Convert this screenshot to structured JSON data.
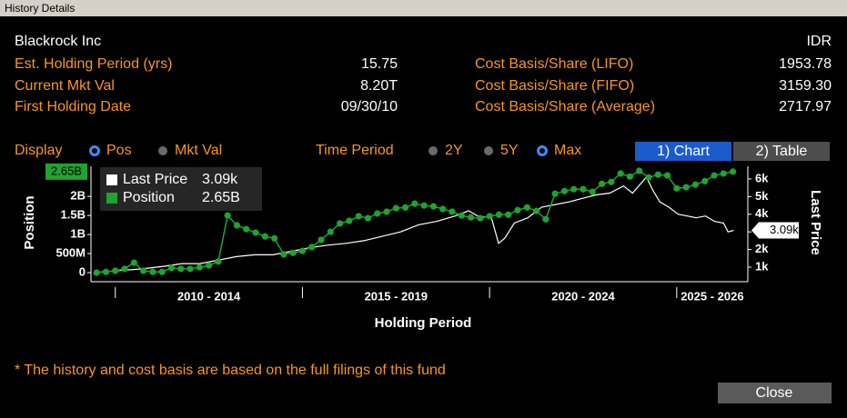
{
  "window": {
    "title": "History Details"
  },
  "header": {
    "name": "Blackrock Inc",
    "currency": "IDR"
  },
  "fields_left": [
    {
      "label": "Est. Holding Period (yrs)",
      "value": "15.75"
    },
    {
      "label": "Current Mkt Val",
      "value": "8.20T"
    },
    {
      "label": "First Holding Date",
      "value": "09/30/10"
    }
  ],
  "fields_right": [
    {
      "label": "Cost Basis/Share (LIFO)",
      "value": "1953.78"
    },
    {
      "label": "Cost Basis/Share (FIFO)",
      "value": "3159.30"
    },
    {
      "label": "Cost Basis/Share (Average)",
      "value": "2717.97"
    }
  ],
  "controls": {
    "display_label": "Display",
    "display_options": [
      {
        "label": "Pos",
        "selected": true
      },
      {
        "label": "Mkt Val",
        "selected": false
      }
    ],
    "time_label": "Time Period",
    "time_options": [
      {
        "label": "2Y",
        "selected": false
      },
      {
        "label": "5Y",
        "selected": false
      },
      {
        "label": "Max",
        "selected": true
      }
    ],
    "tabs": [
      {
        "label": "1) Chart",
        "selected": true
      },
      {
        "label": "2) Table",
        "selected": false
      }
    ]
  },
  "footnote": "* The history and cost basis are based on the full filings of this fund",
  "close": "Close",
  "chart_data": {
    "type": "line",
    "xlabel": "Holding Period",
    "ylabel": "Position",
    "y2label": "Last Price",
    "x_groups": [
      "2010 - 2014",
      "2015 - 2019",
      "2020 - 2024",
      "2025 - 2026"
    ],
    "x_separators": [
      2010,
      2015,
      2020,
      2025
    ],
    "xlim": [
      2009.35,
      2026.9
    ],
    "ylim": [
      -190000000.0,
      2790000000.0
    ],
    "yticks": [
      0,
      {
        "value": 500000000.0,
        "label": "500M"
      },
      {
        "value": 1000000000.0,
        "label": "1B"
      },
      {
        "value": 1500000000.0,
        "label": "1.5B"
      },
      {
        "value": 2000000000.0,
        "label": "2B"
      }
    ],
    "y2lim": [
      280,
      6720
    ],
    "y2ticks": [
      {
        "value": 1000,
        "label": "1k"
      },
      {
        "value": 2000,
        "label": "2k"
      },
      {
        "value": 3000,
        "label": "3k"
      },
      {
        "value": 4000,
        "label": "4k"
      },
      {
        "value": 5000,
        "label": "5k"
      },
      {
        "value": 6000,
        "label": "6k"
      }
    ],
    "series": [
      {
        "name": "Last Price",
        "color": "#ffffff",
        "axis": "y2",
        "last_label": "3.09k",
        "x": [
          2009.46,
          2010.07,
          2010.68,
          2011.29,
          2011.78,
          2012.26,
          2012.87,
          2013.24,
          2013.72,
          2014.21,
          2014.7,
          2015.18,
          2015.67,
          2016.16,
          2016.64,
          2017.13,
          2017.62,
          2018.1,
          2018.59,
          2019.08,
          2019.44,
          2019.68,
          2020.05,
          2020.24,
          2020.41,
          2020.66,
          2021.02,
          2021.39,
          2021.75,
          2022.12,
          2022.48,
          2022.85,
          2023.21,
          2023.58,
          2023.82,
          2024.19,
          2024.38,
          2024.55,
          2024.79,
          2025.04,
          2025.28,
          2025.52,
          2025.77,
          2026.01,
          2026.25,
          2026.37,
          2026.52
        ],
        "values": [
          700,
          800,
          900,
          1050,
          1200,
          1200,
          1450,
          1600,
          1700,
          1700,
          1900,
          2100,
          2250,
          2350,
          2500,
          2750,
          3000,
          3400,
          3600,
          3900,
          4200,
          3900,
          3800,
          2350,
          2650,
          3500,
          3800,
          4400,
          4550,
          4700,
          4900,
          5100,
          5200,
          5600,
          5200,
          6100,
          5300,
          4700,
          4400,
          4000,
          3900,
          3800,
          3900,
          3600,
          3500,
          3000,
          3090
        ]
      },
      {
        "name": "Position",
        "color": "#1fa32f",
        "axis": "y",
        "last_label": "2.65B",
        "x": [
          2009.5,
          2009.75,
          2010,
          2010.25,
          2010.5,
          2010.75,
          2011,
          2011.25,
          2011.5,
          2011.75,
          2012,
          2012.25,
          2012.5,
          2012.75,
          2013,
          2013.25,
          2013.5,
          2013.75,
          2014,
          2014.25,
          2014.5,
          2014.75,
          2015,
          2015.25,
          2015.5,
          2015.75,
          2016,
          2016.25,
          2016.5,
          2016.75,
          2017,
          2017.25,
          2017.5,
          2017.75,
          2018,
          2018.25,
          2018.5,
          2018.75,
          2019,
          2019.25,
          2019.5,
          2019.75,
          2020,
          2020.25,
          2020.5,
          2020.75,
          2021,
          2021.25,
          2021.5,
          2021.75,
          2022,
          2022.25,
          2022.5,
          2022.75,
          2023,
          2023.25,
          2023.5,
          2023.75,
          2024,
          2024.25,
          2024.5,
          2024.75,
          2025,
          2025.25,
          2025.5,
          2025.75,
          2026,
          2026.25,
          2026.5
        ],
        "values": [
          0,
          20000000.0,
          50000000.0,
          100000000.0,
          260000000.0,
          50000000.0,
          20000000.0,
          20000000.0,
          120000000.0,
          100000000.0,
          100000000.0,
          140000000.0,
          190000000.0,
          290000000.0,
          1500000000.0,
          1240000000.0,
          1140000000.0,
          1050000000.0,
          950000000.0,
          900000000.0,
          480000000.0,
          520000000.0,
          570000000.0,
          670000000.0,
          860000000.0,
          1070000000.0,
          1290000000.0,
          1360000000.0,
          1480000000.0,
          1430000000.0,
          1550000000.0,
          1600000000.0,
          1690000000.0,
          1710000000.0,
          1810000000.0,
          1760000000.0,
          1740000000.0,
          1670000000.0,
          1600000000.0,
          1500000000.0,
          1450000000.0,
          1430000000.0,
          1480000000.0,
          1520000000.0,
          1520000000.0,
          1640000000.0,
          1710000000.0,
          1620000000.0,
          1400000000.0,
          2070000000.0,
          2140000000.0,
          2190000000.0,
          2190000000.0,
          2120000000.0,
          2330000000.0,
          2380000000.0,
          2600000000.0,
          2520000000.0,
          2670000000.0,
          2500000000.0,
          2570000000.0,
          2550000000.0,
          2210000000.0,
          2240000000.0,
          2310000000.0,
          2400000000.0,
          2550000000.0,
          2600000000.0,
          2650000000.0
        ]
      }
    ]
  }
}
